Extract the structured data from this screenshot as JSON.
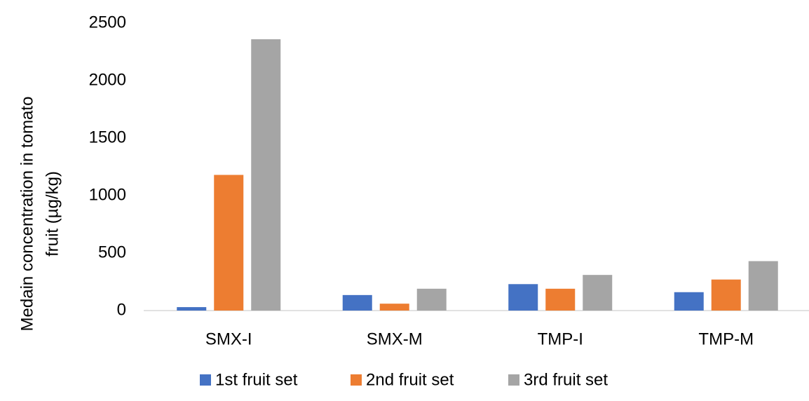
{
  "chart_data": {
    "type": "bar",
    "ylabel": [
      "Medain concentration in tomato",
      "fruit (µg/kg)"
    ],
    "categories": [
      "SMX-I",
      "SMX-M",
      "TMP-I",
      "TMP-M"
    ],
    "series": [
      {
        "name": "1st fruit set",
        "color": "#4472c4",
        "values": [
          30,
          135,
          230,
          160
        ]
      },
      {
        "name": "2nd fruit set",
        "color": "#ed7d31",
        "values": [
          1180,
          60,
          190,
          270
        ]
      },
      {
        "name": "3rd fruit set",
        "color": "#a5a5a5",
        "values": [
          2360,
          190,
          310,
          430
        ]
      }
    ],
    "ylim": [
      0,
      2500
    ],
    "yticks": [
      0,
      500,
      1000,
      1500,
      2000,
      2500
    ],
    "grid": false,
    "legend": "bottom"
  }
}
